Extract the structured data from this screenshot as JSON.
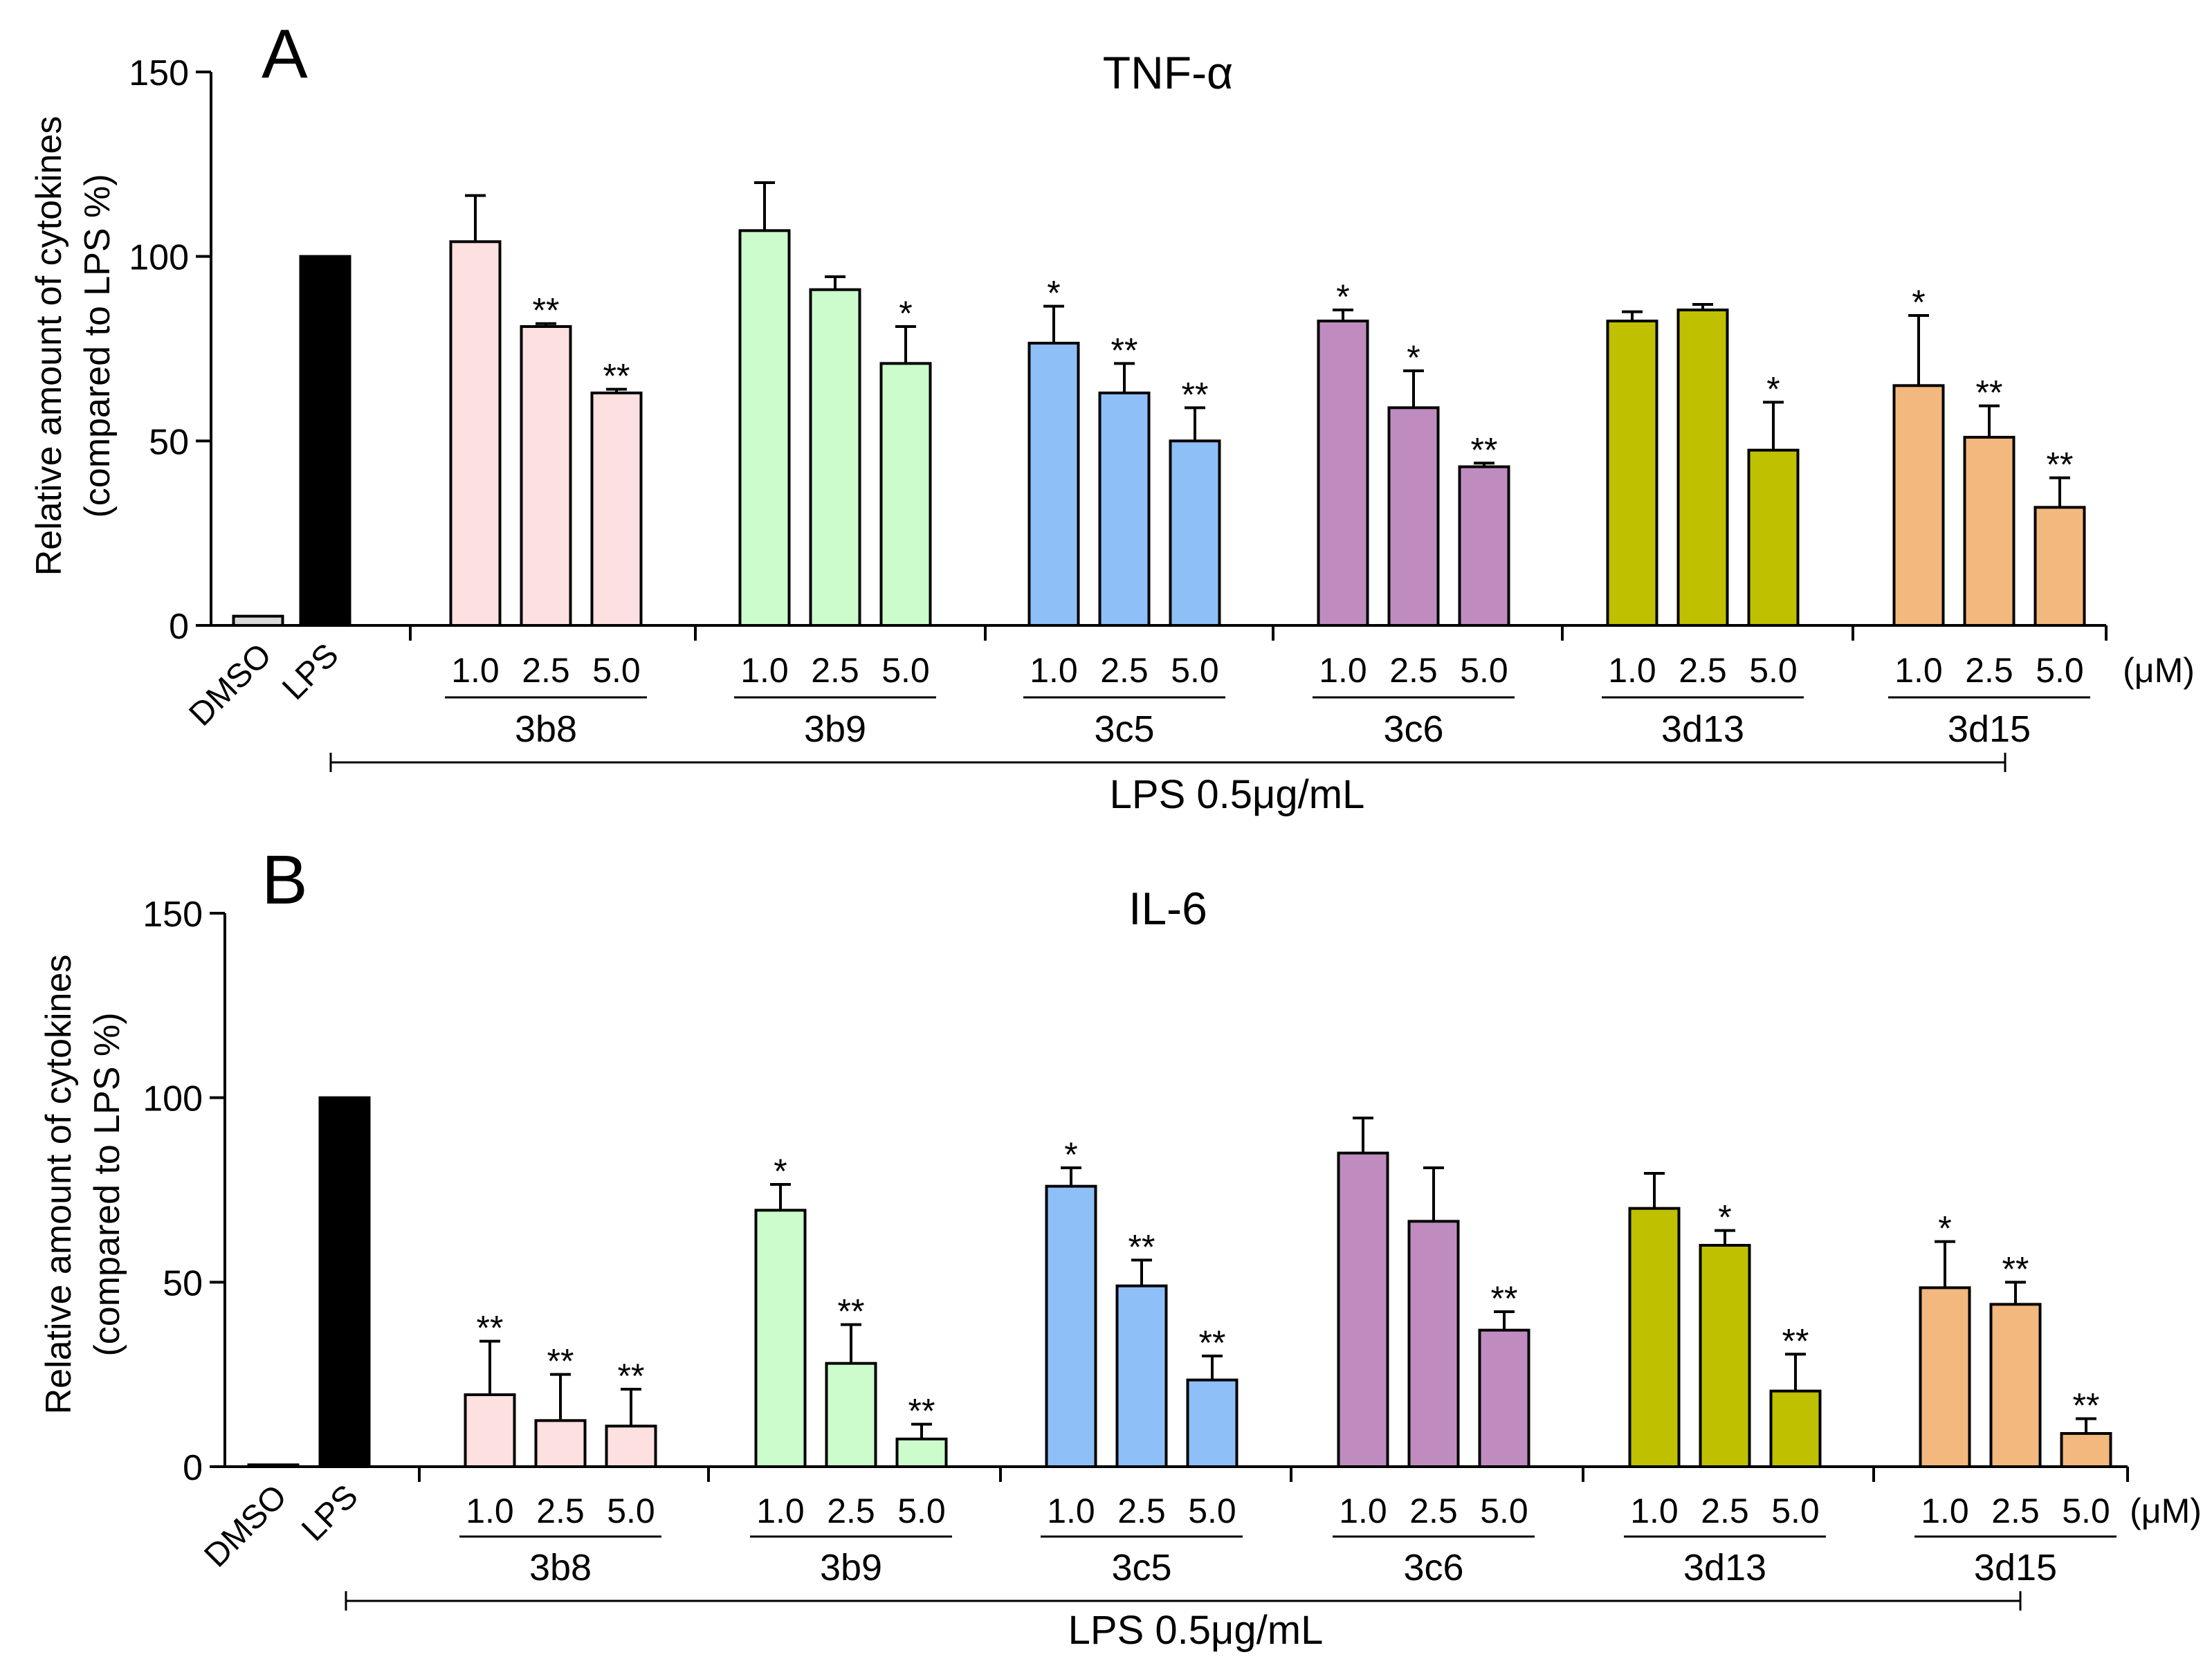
{
  "colors": {
    "dmso": "#d9d9d9",
    "lps": "#000000",
    "3b8": "#fde0e0",
    "3b9": "#ccfccc",
    "3c5": "#8fbff7",
    "3c6": "#c08cbf",
    "3d13": "#bfc000",
    "3d15": "#f3b87e"
  },
  "chart_data": [
    {
      "type": "bar",
      "panel_letter": "A",
      "title": "TNF-α",
      "ylabel_line1": "Relative amount of  cytokines",
      "ylabel_line2": "(compared to LPS %)",
      "ylim": [
        0,
        150
      ],
      "yticks": [
        0,
        50,
        100,
        150
      ],
      "controls": [
        {
          "label": "DMSO",
          "value": 2.5,
          "error": 0
        },
        {
          "label": "LPS",
          "value": 100,
          "error": 0
        }
      ],
      "dose_labels": [
        "1.0",
        "2.5",
        "5.0"
      ],
      "dose_unit": "(μM)",
      "groups": [
        {
          "name": "3b8",
          "values": [
            104,
            81,
            63
          ],
          "errors": [
            12.5,
            0.8,
            1
          ],
          "sig": [
            "",
            "**",
            "**"
          ]
        },
        {
          "name": "3b9",
          "values": [
            107,
            91,
            71
          ],
          "errors": [
            13,
            3.5,
            10
          ],
          "sig": [
            "",
            "",
            "*"
          ]
        },
        {
          "name": "3c5",
          "values": [
            76.5,
            63,
            50
          ],
          "errors": [
            10,
            8,
            9
          ],
          "sig": [
            "*",
            "**",
            "**"
          ]
        },
        {
          "name": "3c6",
          "values": [
            82.5,
            59,
            43
          ],
          "errors": [
            3,
            10,
            1
          ],
          "sig": [
            "*",
            "*",
            "**"
          ]
        },
        {
          "name": "3d13",
          "values": [
            82.5,
            85.5,
            47.5
          ],
          "errors": [
            2.5,
            1.5,
            13
          ],
          "sig": [
            "",
            "",
            "*"
          ]
        },
        {
          "name": "3d15",
          "values": [
            65,
            51,
            32
          ],
          "errors": [
            19,
            8.5,
            8
          ],
          "sig": [
            "*",
            "**",
            "**"
          ]
        }
      ],
      "treatment_label": "LPS  0.5μg/mL"
    },
    {
      "type": "bar",
      "panel_letter": "B",
      "title": "IL-6",
      "ylabel_line1": "Relative amount of  cytokines",
      "ylabel_line2": "(compared to LPS %)",
      "ylim": [
        0,
        150
      ],
      "yticks": [
        0,
        50,
        100,
        150
      ],
      "controls": [
        {
          "label": "DMSO",
          "value": 0.5,
          "error": 0
        },
        {
          "label": "LPS",
          "value": 100,
          "error": 0
        }
      ],
      "dose_labels": [
        "1.0",
        "2.5",
        "5.0"
      ],
      "dose_unit": "(μM)",
      "groups": [
        {
          "name": "3b8",
          "values": [
            19.5,
            12.5,
            11
          ],
          "errors": [
            14.5,
            12.5,
            10
          ],
          "sig": [
            "**",
            "**",
            "**"
          ]
        },
        {
          "name": "3b9",
          "values": [
            69.5,
            28,
            7.5
          ],
          "errors": [
            7,
            10.5,
            4
          ],
          "sig": [
            "*",
            "**",
            "**"
          ]
        },
        {
          "name": "3c5",
          "values": [
            76,
            49,
            23.5
          ],
          "errors": [
            5,
            7,
            6.5
          ],
          "sig": [
            "*",
            "**",
            "**"
          ]
        },
        {
          "name": "3c6",
          "values": [
            85,
            66.5,
            37
          ],
          "errors": [
            9.5,
            14.5,
            5
          ],
          "sig": [
            "",
            "",
            "**"
          ]
        },
        {
          "name": "3d13",
          "values": [
            70,
            60,
            20.5
          ],
          "errors": [
            9.5,
            4,
            10
          ],
          "sig": [
            "",
            "*",
            "**"
          ]
        },
        {
          "name": "3d15",
          "values": [
            48.5,
            44,
            9
          ],
          "errors": [
            12.5,
            6,
            4
          ],
          "sig": [
            "*",
            "**",
            "**"
          ]
        }
      ],
      "treatment_label": "LPS  0.5μg/mL"
    }
  ]
}
